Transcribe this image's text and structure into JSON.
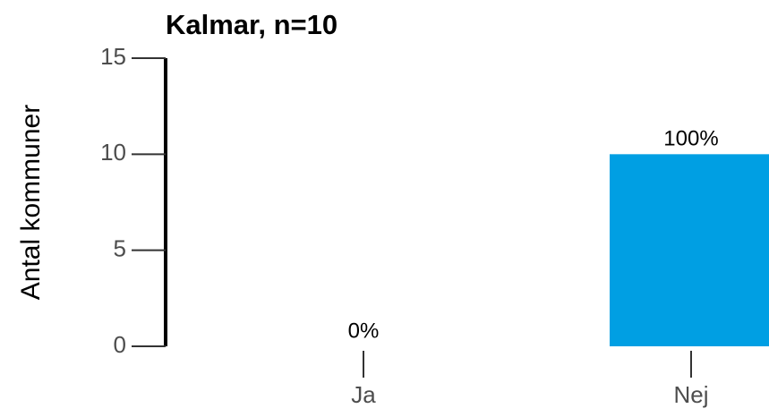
{
  "chart_data": {
    "type": "bar",
    "title": "Kalmar, n=10",
    "y_label": "Antal kommuner",
    "categories": [
      "Ja",
      "Nej"
    ],
    "values": [
      0,
      10
    ],
    "value_labels": [
      "0%",
      "100%"
    ],
    "color": "#009fe3",
    "ylim": [
      0,
      15
    ],
    "yticks": [
      0,
      5,
      10,
      15
    ],
    "grid": false
  }
}
